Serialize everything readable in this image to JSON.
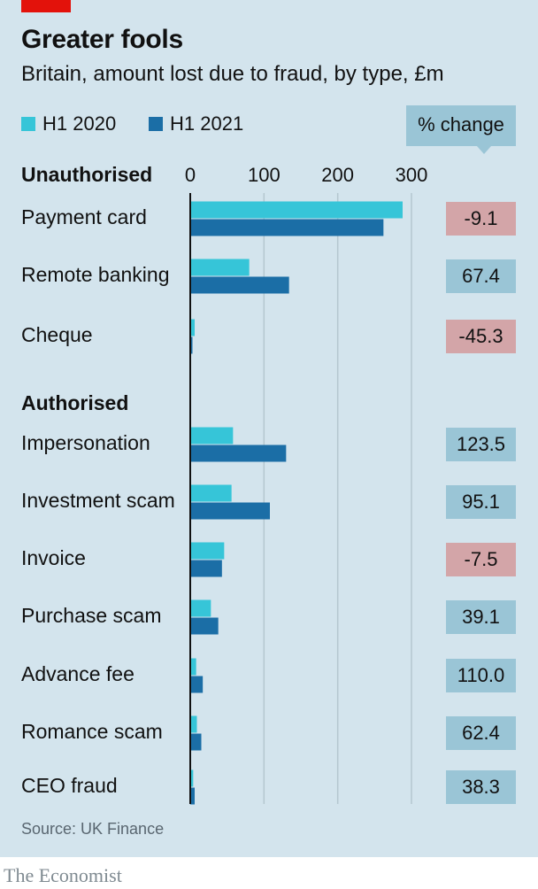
{
  "header": {
    "title": "Greater fools",
    "subtitle": "Britain, amount lost due to fraud, by type, £m",
    "pct_header": "% change"
  },
  "legend": [
    {
      "label": "H1 2020",
      "color": "#36c5d8"
    },
    {
      "label": "H1 2021",
      "color": "#1b6ea6"
    }
  ],
  "colors": {
    "positive_box": "#9ac5d6",
    "negative_box": "#d3a5a8",
    "gridline": "#b5c7d0",
    "axis": "#111111"
  },
  "chart_data": {
    "type": "bar",
    "orientation": "horizontal",
    "xlim": [
      0,
      300
    ],
    "xticks": [
      0,
      100,
      200,
      300
    ],
    "grid": true,
    "legend_position": "top-left",
    "series": [
      {
        "name": "H1 2020",
        "values": [
          288,
          80,
          6,
          58,
          56,
          46,
          28,
          8,
          9,
          4
        ]
      },
      {
        "name": "H1 2021",
        "values": [
          262,
          134,
          3,
          130,
          108,
          43,
          38,
          17,
          15,
          6
        ]
      }
    ],
    "groups": [
      {
        "label": "Unauthorised",
        "categories": [
          {
            "label": "Payment card",
            "pct_change": "-9.1"
          },
          {
            "label": "Remote banking",
            "pct_change": "67.4"
          },
          {
            "label": "Cheque",
            "pct_change": "-45.3"
          }
        ]
      },
      {
        "label": "Authorised",
        "categories": [
          {
            "label": "Impersonation",
            "pct_change": "123.5"
          },
          {
            "label": "Investment scam",
            "pct_change": "95.1"
          },
          {
            "label": "Invoice",
            "pct_change": "-7.5"
          },
          {
            "label": "Purchase scam",
            "pct_change": "39.1"
          },
          {
            "label": "Advance fee",
            "pct_change": "110.0"
          },
          {
            "label": "Romance scam",
            "pct_change": "62.4"
          },
          {
            "label": "CEO fraud",
            "pct_change": "38.3"
          }
        ]
      }
    ]
  },
  "footer": {
    "source": "Source: UK Finance",
    "brand": "The Economist"
  }
}
